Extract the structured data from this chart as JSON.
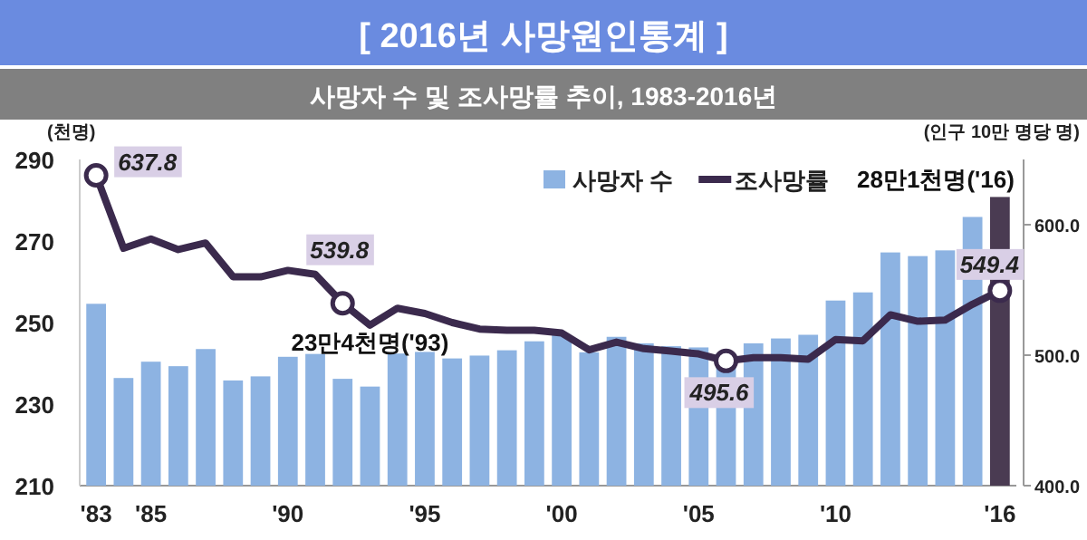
{
  "chart_data": {
    "type": "bar",
    "title": "[ 2016년 사망원인통계 ]",
    "subtitle": "사망자 수 및 조사망률 추이, 1983-2016년",
    "ylabel": "(천명)",
    "y2label": "(인구 10만 명당 명)",
    "x": [
      1983,
      1984,
      1985,
      1986,
      1987,
      1988,
      1989,
      1990,
      1991,
      1992,
      1993,
      1994,
      1995,
      1996,
      1997,
      1998,
      1999,
      2000,
      2001,
      2002,
      2003,
      2004,
      2005,
      2006,
      2007,
      2008,
      2009,
      2010,
      2011,
      2012,
      2013,
      2014,
      2015,
      2016
    ],
    "xlim": [
      1982.4,
      2016.6
    ],
    "xticks": [
      {
        "value": 1983,
        "label": "'83"
      },
      {
        "value": 1985,
        "label": "'85"
      },
      {
        "value": 1990,
        "label": "'90"
      },
      {
        "value": 1995,
        "label": "'95"
      },
      {
        "value": 2000,
        "label": "'00"
      },
      {
        "value": 2005,
        "label": "'05"
      },
      {
        "value": 2010,
        "label": "'10"
      },
      {
        "value": 2016,
        "label": "'16"
      }
    ],
    "ylim": [
      210,
      290
    ],
    "yticks": [
      210,
      230,
      250,
      270,
      290
    ],
    "y2lim": [
      400,
      650
    ],
    "y2ticks": [
      {
        "value": 400,
        "label": "400.0"
      },
      {
        "value": 500,
        "label": "500.0"
      },
      {
        "value": 600,
        "label": "600.0"
      }
    ],
    "series": [
      {
        "name": "사망자 수",
        "color": "#8db3e2",
        "colors": [
          "#8db3e2",
          "#8db3e2",
          "#8db3e2",
          "#8db3e2",
          "#8db3e2",
          "#8db3e2",
          "#8db3e2",
          "#8db3e2",
          "#8db3e2",
          "#8db3e2",
          "#8db3e2",
          "#8db3e2",
          "#8db3e2",
          "#8db3e2",
          "#8db3e2",
          "#8db3e2",
          "#8db3e2",
          "#8db3e2",
          "#8db3e2",
          "#8db3e2",
          "#8db3e2",
          "#8db3e2",
          "#8db3e2",
          "#8db3e2",
          "#8db3e2",
          "#8db3e2",
          "#8db3e2",
          "#8db3e2",
          "#8db3e2",
          "#8db3e2",
          "#8db3e2",
          "#8db3e2",
          "#8db3e2",
          "#4a3b52"
        ],
        "values": [
          254.6,
          236.4,
          240.4,
          239.3,
          243.5,
          235.8,
          236.8,
          241.6,
          242.3,
          236.2,
          234.3,
          242.4,
          242.8,
          241.2,
          241.9,
          243.2,
          245.4,
          246.9,
          242.7,
          246.5,
          244.9,
          244.2,
          243.9,
          242.3,
          244.9,
          246.1,
          247.0,
          255.4,
          257.4,
          267.2,
          266.3,
          267.7,
          275.9,
          280.8
        ]
      },
      {
        "name": "조사망률",
        "type": "line",
        "axis": "y2",
        "color": "#3b2a4d",
        "values": [
          637.8,
          582,
          589,
          581,
          586,
          560,
          560,
          565,
          562,
          539.8,
          523,
          536,
          532,
          525,
          520,
          519,
          519,
          517,
          504,
          510,
          505,
          503,
          501,
          495.6,
          498,
          498,
          497,
          512,
          511,
          531,
          526,
          527,
          539,
          549.4
        ],
        "value_labels": [
          "637.8",
          null,
          null,
          null,
          null,
          null,
          null,
          null,
          null,
          "539.8",
          null,
          null,
          null,
          null,
          null,
          null,
          null,
          null,
          null,
          null,
          null,
          null,
          null,
          "495.6",
          null,
          null,
          null,
          null,
          null,
          null,
          null,
          null,
          null,
          "549.4"
        ]
      }
    ],
    "annotations": [
      {
        "text": "23만4천명('93)",
        "x": 1993,
        "y": 234.3
      },
      {
        "text": "28만1천명('16)",
        "x": 2016,
        "y": 280.8
      }
    ],
    "legend": "top"
  }
}
